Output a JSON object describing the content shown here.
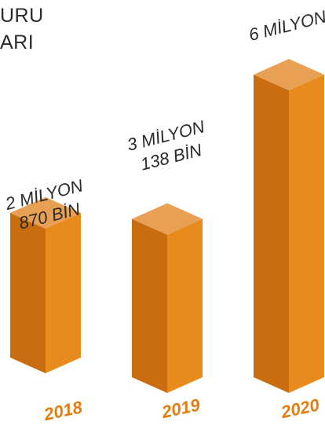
{
  "title_lines": [
    "URU",
    "ARI"
  ],
  "colors": {
    "top": "#e8a055",
    "left": "#c96d10",
    "right": "#e88a1c",
    "label": "#2b2b2b",
    "year": "#e27d12"
  },
  "chart_data": {
    "type": "bar",
    "title": "URU ARI",
    "categories": [
      "2018",
      "2019",
      "2020"
    ],
    "values": [
      2870000,
      3138000,
      6000000
    ],
    "value_labels": [
      [
        "2 MİLYON",
        "870 BİN"
      ],
      [
        "3 MİLYON",
        "138 BİN"
      ],
      [
        "6 MİLYON"
      ]
    ],
    "ylim": [
      0,
      6000000
    ],
    "grid": false,
    "legend": "none"
  }
}
